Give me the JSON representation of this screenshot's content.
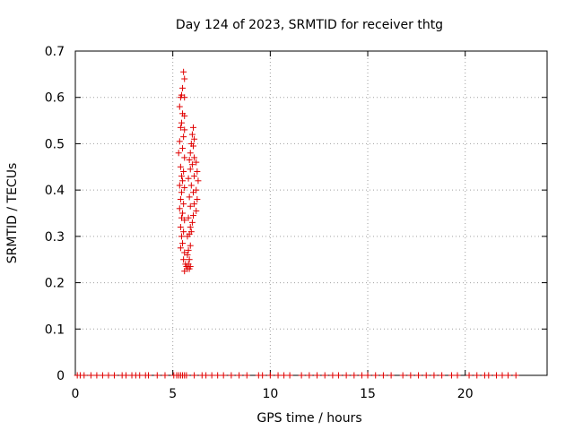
{
  "chart_data": {
    "type": "scatter",
    "title": "Day 124 of 2023, SRMTID for receiver thtg",
    "xlabel": "GPS time / hours",
    "ylabel": "SRMTID / TECUs",
    "xlim": [
      0,
      24.2
    ],
    "ylim": [
      0,
      0.7
    ],
    "x_ticks": [
      0,
      5,
      10,
      15,
      20
    ],
    "x_tick_labels": [
      "0",
      "5",
      "10",
      "15",
      "20"
    ],
    "y_ticks": [
      0,
      0.1,
      0.2,
      0.3,
      0.4,
      0.5,
      0.6,
      0.7
    ],
    "y_tick_labels": [
      "0",
      "0.1",
      "0.2",
      "0.3",
      "0.4",
      "0.5",
      "0.6",
      "0.7"
    ],
    "grid": true,
    "marker": "+",
    "color": "#e00000",
    "series": [
      {
        "name": "SRMTID",
        "points": [
          [
            0.1,
            0
          ],
          [
            0.25,
            0
          ],
          [
            0.45,
            0
          ],
          [
            0.8,
            0
          ],
          [
            1.1,
            0
          ],
          [
            1.4,
            0
          ],
          [
            1.7,
            0
          ],
          [
            2.0,
            0
          ],
          [
            2.4,
            0
          ],
          [
            2.6,
            0
          ],
          [
            2.9,
            0
          ],
          [
            3.1,
            0
          ],
          [
            3.3,
            0
          ],
          [
            3.6,
            0
          ],
          [
            3.75,
            0
          ],
          [
            4.2,
            0
          ],
          [
            4.6,
            0
          ],
          [
            5.05,
            0
          ],
          [
            5.2,
            0
          ],
          [
            5.3,
            0
          ],
          [
            5.4,
            0
          ],
          [
            5.5,
            0
          ],
          [
            5.6,
            0
          ],
          [
            5.7,
            0
          ],
          [
            6.1,
            0
          ],
          [
            6.5,
            0
          ],
          [
            6.7,
            0
          ],
          [
            7.0,
            0
          ],
          [
            7.3,
            0
          ],
          [
            7.6,
            0
          ],
          [
            8.0,
            0
          ],
          [
            8.4,
            0
          ],
          [
            8.8,
            0
          ],
          [
            9.4,
            0
          ],
          [
            9.6,
            0
          ],
          [
            10.0,
            0
          ],
          [
            10.4,
            0
          ],
          [
            10.7,
            0
          ],
          [
            11.0,
            0
          ],
          [
            11.6,
            0
          ],
          [
            12.0,
            0
          ],
          [
            12.4,
            0
          ],
          [
            12.8,
            0
          ],
          [
            13.2,
            0
          ],
          [
            13.5,
            0
          ],
          [
            13.9,
            0
          ],
          [
            14.3,
            0
          ],
          [
            14.7,
            0
          ],
          [
            15.0,
            0
          ],
          [
            15.4,
            0
          ],
          [
            15.8,
            0
          ],
          [
            16.2,
            0
          ],
          [
            16.8,
            0
          ],
          [
            17.2,
            0
          ],
          [
            17.6,
            0
          ],
          [
            18.0,
            0
          ],
          [
            18.4,
            0
          ],
          [
            18.8,
            0
          ],
          [
            19.3,
            0
          ],
          [
            19.6,
            0
          ],
          [
            20.2,
            0
          ],
          [
            20.6,
            0
          ],
          [
            21.0,
            0
          ],
          [
            21.2,
            0
          ],
          [
            21.6,
            0
          ],
          [
            21.9,
            0
          ],
          [
            22.2,
            0
          ],
          [
            22.6,
            0
          ],
          [
            5.55,
            0.655
          ],
          [
            5.6,
            0.64
          ],
          [
            5.5,
            0.62
          ],
          [
            5.45,
            0.605
          ],
          [
            5.4,
            0.6
          ],
          [
            5.6,
            0.6
          ],
          [
            5.35,
            0.58
          ],
          [
            5.5,
            0.565
          ],
          [
            5.6,
            0.56
          ],
          [
            5.45,
            0.545
          ],
          [
            5.4,
            0.535
          ],
          [
            5.6,
            0.53
          ],
          [
            5.55,
            0.515
          ],
          [
            5.35,
            0.505
          ],
          [
            5.5,
            0.49
          ],
          [
            5.3,
            0.48
          ],
          [
            5.6,
            0.47
          ],
          [
            5.4,
            0.45
          ],
          [
            5.55,
            0.44
          ],
          [
            5.45,
            0.43
          ],
          [
            5.5,
            0.42
          ],
          [
            5.35,
            0.41
          ],
          [
            5.6,
            0.405
          ],
          [
            5.45,
            0.395
          ],
          [
            5.4,
            0.38
          ],
          [
            5.55,
            0.37
          ],
          [
            5.35,
            0.36
          ],
          [
            5.5,
            0.35
          ],
          [
            5.45,
            0.34
          ],
          [
            5.6,
            0.335
          ],
          [
            5.4,
            0.32
          ],
          [
            5.55,
            0.31
          ],
          [
            5.45,
            0.3
          ],
          [
            5.5,
            0.285
          ],
          [
            5.4,
            0.275
          ],
          [
            5.6,
            0.265
          ],
          [
            5.55,
            0.25
          ],
          [
            5.65,
            0.24
          ],
          [
            5.7,
            0.235
          ],
          [
            5.75,
            0.23
          ],
          [
            5.6,
            0.225
          ],
          [
            6.05,
            0.535
          ],
          [
            6.0,
            0.52
          ],
          [
            6.1,
            0.51
          ],
          [
            5.95,
            0.5
          ],
          [
            6.05,
            0.495
          ],
          [
            5.9,
            0.48
          ],
          [
            6.1,
            0.47
          ],
          [
            5.85,
            0.465
          ],
          [
            6.2,
            0.46
          ],
          [
            6.0,
            0.455
          ],
          [
            5.9,
            0.445
          ],
          [
            6.25,
            0.44
          ],
          [
            6.1,
            0.43
          ],
          [
            5.8,
            0.425
          ],
          [
            6.3,
            0.42
          ],
          [
            5.95,
            0.41
          ],
          [
            6.2,
            0.4
          ],
          [
            6.05,
            0.395
          ],
          [
            5.85,
            0.385
          ],
          [
            6.25,
            0.38
          ],
          [
            6.1,
            0.37
          ],
          [
            5.9,
            0.365
          ],
          [
            6.2,
            0.355
          ],
          [
            6.05,
            0.345
          ],
          [
            5.8,
            0.34
          ],
          [
            6.0,
            0.33
          ],
          [
            5.9,
            0.32
          ],
          [
            5.95,
            0.31
          ],
          [
            5.85,
            0.305
          ],
          [
            5.75,
            0.3
          ],
          [
            5.9,
            0.28
          ],
          [
            5.8,
            0.27
          ],
          [
            5.75,
            0.26
          ],
          [
            5.85,
            0.25
          ],
          [
            5.8,
            0.24
          ],
          [
            5.9,
            0.235
          ],
          [
            5.85,
            0.23
          ]
        ]
      }
    ]
  }
}
